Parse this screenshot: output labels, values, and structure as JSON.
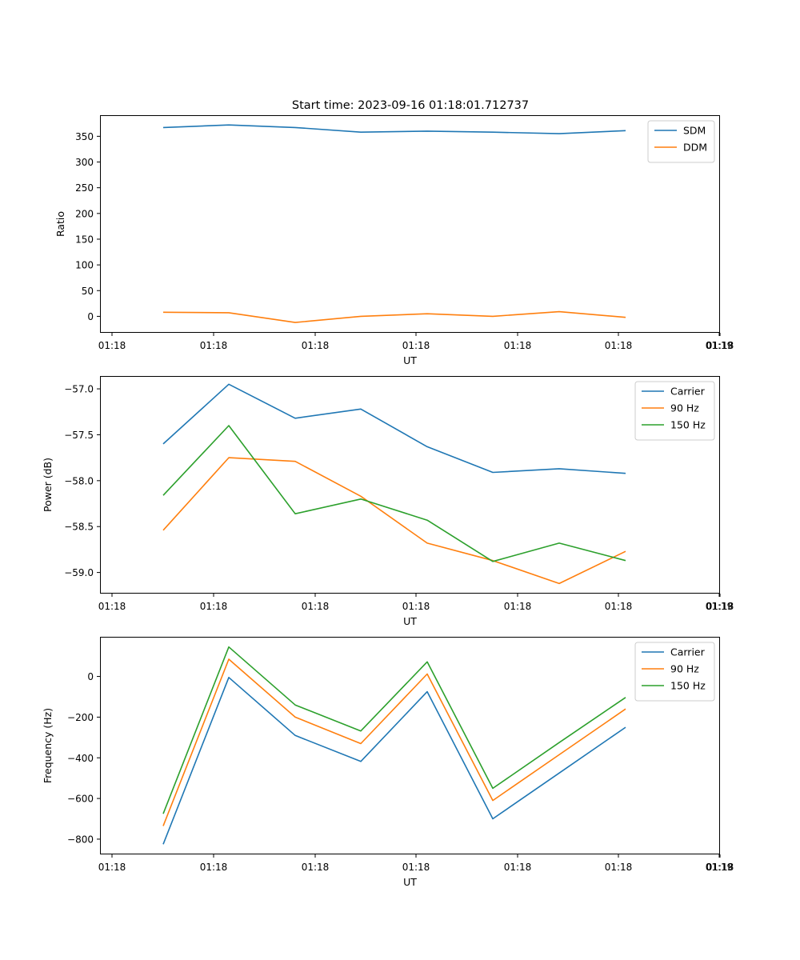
{
  "title": "Start time: 2023-09-16 01:18:01.712737",
  "colors": {
    "c1": "#1f77b4",
    "c2": "#ff7f0e",
    "c3": "#2ca02c"
  },
  "chart_data": [
    {
      "type": "line",
      "xlabel": "UT",
      "ylabel": "Ratio",
      "xticks": [
        "01:18",
        "01:18",
        "01:18",
        "01:18",
        "01:18",
        "01:18",
        "01:18",
        "01:19"
      ],
      "ylim": [
        -32,
        391
      ],
      "yticks": [
        0,
        50,
        100,
        150,
        200,
        250,
        300,
        350
      ],
      "legend_position": "top-right",
      "series": [
        {
          "name": "SDM",
          "color": "#1f77b4",
          "values": [
            367,
            372,
            367,
            358,
            360,
            358,
            355,
            361
          ]
        },
        {
          "name": "DDM",
          "color": "#ff7f0e",
          "values": [
            8,
            7,
            -12,
            0,
            5,
            0,
            9,
            -2
          ]
        }
      ]
    },
    {
      "type": "line",
      "xlabel": "UT",
      "ylabel": "Power (dB)",
      "xticks": [
        "01:18",
        "01:18",
        "01:18",
        "01:18",
        "01:18",
        "01:18",
        "01:18",
        "01:19"
      ],
      "ylim": [
        -59.23,
        -56.86
      ],
      "yticks": [
        -59.0,
        -58.5,
        -58.0,
        -57.5,
        -57.0
      ],
      "ytick_labels": [
        "−59.0",
        "−58.5",
        "−58.0",
        "−57.5",
        "−57.0"
      ],
      "legend_position": "top-right",
      "series": [
        {
          "name": "Carrier",
          "color": "#1f77b4",
          "values": [
            -57.6,
            -56.95,
            -57.32,
            -57.22,
            -57.63,
            -57.91,
            -57.87,
            -57.92
          ]
        },
        {
          "name": "90 Hz",
          "color": "#ff7f0e",
          "values": [
            -58.54,
            -57.75,
            -57.79,
            -58.17,
            -58.68,
            -58.87,
            -59.12,
            -58.77
          ]
        },
        {
          "name": "150 Hz",
          "color": "#2ca02c",
          "values": [
            -58.16,
            -57.4,
            -58.36,
            -58.2,
            -58.43,
            -58.88,
            -58.68,
            -58.87
          ]
        }
      ]
    },
    {
      "type": "line",
      "xlabel": "UT",
      "ylabel": "Frequency (Hz)",
      "xticks": [
        "01:18",
        "01:18",
        "01:18",
        "01:18",
        "01:18",
        "01:18",
        "01:18",
        "01:19"
      ],
      "ylim": [
        -875,
        195
      ],
      "yticks": [
        -800,
        -600,
        -400,
        -200,
        0
      ],
      "ytick_labels": [
        "−800",
        "−600",
        "−400",
        "−200",
        "0"
      ],
      "legend_position": "top-right",
      "series": [
        {
          "name": "Carrier",
          "color": "#1f77b4",
          "values": [
            -825,
            -5,
            -290,
            -418,
            -75,
            -700,
            -475,
            -250
          ]
        },
        {
          "name": "90 Hz",
          "color": "#ff7f0e",
          "values": [
            -735,
            85,
            -200,
            -330,
            12,
            -610,
            -385,
            -160
          ]
        },
        {
          "name": "150 Hz",
          "color": "#2ca02c",
          "values": [
            -675,
            145,
            -140,
            -268,
            72,
            -550,
            -325,
            -103
          ]
        }
      ]
    }
  ]
}
